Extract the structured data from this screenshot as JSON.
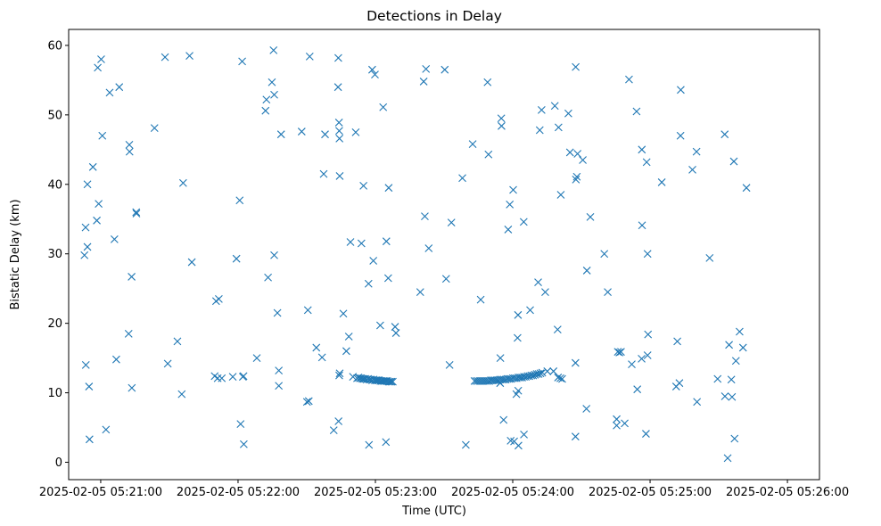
{
  "chart_data": {
    "type": "scatter",
    "title": "Detections in Delay",
    "xlabel": "Time (UTC)",
    "ylabel": "Bistatic Delay (km)",
    "marker": "x",
    "color": "#1f77b4",
    "grid": false,
    "x_units": "seconds after 2025-02-05 05:21:00",
    "xlim": [
      -14,
      314
    ],
    "ylim": [
      -2.5,
      62.3
    ],
    "x_ticks": [
      {
        "value": 0,
        "label": "2025-02-05 05:21:00"
      },
      {
        "value": 60,
        "label": "2025-02-05 05:22:00"
      },
      {
        "value": 120,
        "label": "2025-02-05 05:23:00"
      },
      {
        "value": 180,
        "label": "2025-02-05 05:24:00"
      },
      {
        "value": 240,
        "label": "2025-02-05 05:25:00"
      },
      {
        "value": 300,
        "label": "2025-02-05 05:26:00"
      }
    ],
    "y_ticks": [
      {
        "value": 0,
        "label": "0"
      },
      {
        "value": 10,
        "label": "10"
      },
      {
        "value": 20,
        "label": "20"
      },
      {
        "value": 30,
        "label": "30"
      },
      {
        "value": 40,
        "label": "40"
      },
      {
        "value": 50,
        "label": "50"
      },
      {
        "value": 60,
        "label": "60"
      }
    ],
    "series": [
      {
        "name": "Detections",
        "points": [
          [
            -7.1,
            29.8
          ],
          [
            -6.6,
            33.8
          ],
          [
            -6.5,
            14.0
          ],
          [
            -5.8,
            31.0
          ],
          [
            -5.8,
            40.0
          ],
          [
            -5.1,
            10.9
          ],
          [
            -4.9,
            3.3
          ],
          [
            -3.4,
            42.5
          ],
          [
            -1.7,
            34.8
          ],
          [
            -1.3,
            56.8
          ],
          [
            -0.9,
            37.2
          ],
          [
            0.2,
            58.0
          ],
          [
            0.7,
            47.0
          ],
          [
            2.3,
            4.7
          ],
          [
            3.9,
            53.2
          ],
          [
            6.0,
            32.1
          ],
          [
            6.8,
            14.8
          ],
          [
            8.1,
            54.0
          ],
          [
            12.2,
            18.5
          ],
          [
            12.5,
            45.7
          ],
          [
            12.6,
            44.7
          ],
          [
            13.5,
            26.7
          ],
          [
            13.6,
            10.7
          ],
          [
            15.5,
            36.0
          ],
          [
            15.6,
            35.8
          ],
          [
            23.5,
            48.1
          ],
          [
            28.1,
            58.3
          ],
          [
            29.3,
            14.2
          ],
          [
            33.5,
            17.4
          ],
          [
            35.4,
            9.8
          ],
          [
            36.0,
            40.2
          ],
          [
            38.8,
            58.5
          ],
          [
            39.8,
            28.8
          ],
          [
            49.8,
            12.4
          ],
          [
            50.4,
            23.2
          ],
          [
            51.1,
            12.1
          ],
          [
            51.6,
            23.5
          ],
          [
            52.9,
            12.1
          ],
          [
            57.7,
            12.3
          ],
          [
            59.3,
            29.3
          ],
          [
            60.7,
            37.7
          ],
          [
            61.1,
            5.5
          ],
          [
            61.8,
            57.7
          ],
          [
            62.1,
            12.3
          ],
          [
            62.4,
            12.4
          ],
          [
            62.5,
            2.6
          ],
          [
            68.2,
            15.0
          ],
          [
            72.0,
            50.6
          ],
          [
            72.4,
            52.2
          ],
          [
            73.1,
            26.6
          ],
          [
            74.8,
            54.7
          ],
          [
            75.5,
            59.3
          ],
          [
            75.8,
            52.9
          ],
          [
            75.8,
            29.8
          ],
          [
            77.2,
            21.5
          ],
          [
            77.8,
            13.2
          ],
          [
            77.8,
            11.0
          ],
          [
            78.8,
            47.2
          ],
          [
            87.8,
            47.6
          ],
          [
            90.1,
            8.7
          ],
          [
            90.5,
            21.9
          ],
          [
            90.9,
            8.8
          ],
          [
            91.3,
            58.4
          ],
          [
            94.2,
            16.5
          ],
          [
            96.7,
            15.1
          ],
          [
            97.4,
            41.5
          ],
          [
            98.0,
            47.2
          ],
          [
            101.8,
            4.6
          ],
          [
            103.7,
            54.0
          ],
          [
            103.8,
            58.2
          ],
          [
            104.1,
            48.9
          ],
          [
            104.2,
            47.7
          ],
          [
            104.3,
            46.6
          ],
          [
            104.4,
            41.2
          ],
          [
            103.9,
            5.9
          ],
          [
            104.4,
            12.8
          ],
          [
            104.2,
            12.5
          ],
          [
            106.0,
            21.4
          ],
          [
            107.3,
            16.0
          ],
          [
            108.4,
            18.1
          ],
          [
            109.1,
            31.7
          ],
          [
            110.2,
            12.3
          ],
          [
            111.4,
            47.5
          ],
          [
            112.0,
            12.1
          ],
          [
            112.6,
            12.2
          ],
          [
            113.2,
            12.1
          ],
          [
            113.9,
            31.5
          ],
          [
            113.8,
            12.1
          ],
          [
            114.4,
            12.0
          ],
          [
            114.8,
            39.8
          ],
          [
            115.0,
            12.0
          ],
          [
            115.6,
            12.0
          ],
          [
            116.2,
            11.9
          ],
          [
            117.0,
            25.7
          ],
          [
            116.8,
            12.0
          ],
          [
            117.2,
            2.5
          ],
          [
            117.4,
            11.9
          ],
          [
            118.0,
            11.9
          ],
          [
            118.6,
            56.5
          ],
          [
            118.6,
            11.8
          ],
          [
            119.1,
            29.0
          ],
          [
            119.2,
            11.9
          ],
          [
            119.8,
            55.8
          ],
          [
            119.8,
            11.8
          ],
          [
            120.4,
            11.8
          ],
          [
            121.0,
            11.8
          ],
          [
            121.6,
            11.8
          ],
          [
            122.1,
            19.7
          ],
          [
            122.2,
            11.7
          ],
          [
            122.8,
            11.7
          ],
          [
            123.4,
            51.1
          ],
          [
            123.4,
            11.7
          ],
          [
            124.0,
            11.7
          ],
          [
            124.6,
            11.7
          ],
          [
            125.2,
            11.7
          ],
          [
            125.8,
            11.6
          ],
          [
            124.8,
            31.8
          ],
          [
            124.6,
            2.9
          ],
          [
            125.6,
            26.5
          ],
          [
            125.8,
            39.5
          ],
          [
            126.4,
            11.6
          ],
          [
            127.0,
            11.6
          ],
          [
            127.6,
            11.6
          ],
          [
            128.6,
            19.5
          ],
          [
            129.0,
            18.6
          ],
          [
            139.6,
            24.5
          ],
          [
            141.1,
            54.8
          ],
          [
            141.6,
            35.4
          ],
          [
            142.1,
            56.6
          ],
          [
            143.3,
            30.8
          ],
          [
            150.3,
            56.5
          ],
          [
            150.9,
            26.4
          ],
          [
            152.4,
            14.0
          ],
          [
            153.2,
            34.5
          ],
          [
            158.0,
            40.9
          ],
          [
            159.5,
            2.5
          ],
          [
            162.5,
            45.8
          ],
          [
            163.3,
            11.7
          ],
          [
            164.1,
            11.7
          ],
          [
            164.9,
            11.7
          ],
          [
            165.7,
            11.7
          ],
          [
            166.0,
            23.4
          ],
          [
            166.5,
            11.7
          ],
          [
            167.3,
            11.7
          ],
          [
            168.1,
            11.7
          ],
          [
            168.9,
            11.7
          ],
          [
            169.0,
            54.7
          ],
          [
            169.4,
            44.3
          ],
          [
            169.7,
            11.7
          ],
          [
            170.5,
            11.8
          ],
          [
            171.3,
            11.8
          ],
          [
            172.1,
            11.8
          ],
          [
            172.9,
            11.8
          ],
          [
            173.7,
            11.8
          ],
          [
            174.5,
            11.9
          ],
          [
            174.5,
            11.4
          ],
          [
            174.6,
            15.0
          ],
          [
            175.0,
            49.5
          ],
          [
            175.3,
            11.9
          ],
          [
            175.1,
            48.4
          ],
          [
            176.0,
            6.1
          ],
          [
            176.1,
            11.9
          ],
          [
            176.9,
            11.9
          ],
          [
            177.7,
            12.0
          ],
          [
            178.0,
            33.5
          ],
          [
            178.5,
            12.0
          ],
          [
            178.7,
            37.1
          ],
          [
            179.3,
            12.0
          ],
          [
            179.1,
            3.1
          ],
          [
            180.1,
            12.1
          ],
          [
            180.2,
            39.2
          ],
          [
            180.9,
            12.1
          ],
          [
            180.6,
            3.0
          ],
          [
            181.6,
            9.8
          ],
          [
            181.7,
            12.1
          ],
          [
            182.1,
            17.9
          ],
          [
            182.4,
            10.3
          ],
          [
            182.5,
            12.2
          ],
          [
            182.3,
            21.2
          ],
          [
            182.5,
            2.4
          ],
          [
            183.3,
            12.2
          ],
          [
            184.1,
            12.2
          ],
          [
            184.8,
            34.6
          ],
          [
            184.9,
            12.3
          ],
          [
            184.9,
            4.0
          ],
          [
            185.7,
            12.3
          ],
          [
            186.5,
            12.4
          ],
          [
            187.3,
            12.4
          ],
          [
            187.6,
            21.9
          ],
          [
            188.1,
            12.5
          ],
          [
            188.9,
            12.5
          ],
          [
            189.7,
            12.6
          ],
          [
            190.5,
            12.7
          ],
          [
            191.3,
            12.7
          ],
          [
            191.1,
            25.9
          ],
          [
            191.8,
            47.8
          ],
          [
            192.1,
            12.8
          ],
          [
            192.6,
            50.7
          ],
          [
            192.9,
            12.9
          ],
          [
            194.2,
            24.5
          ],
          [
            195.1,
            13.1
          ],
          [
            197.8,
            13.1
          ],
          [
            198.4,
            51.3
          ],
          [
            199.6,
            19.1
          ],
          [
            199.8,
            12.2
          ],
          [
            200.0,
            48.2
          ],
          [
            200.8,
            12.1
          ],
          [
            201.0,
            38.5
          ],
          [
            201.6,
            12.0
          ],
          [
            204.3,
            50.2
          ],
          [
            205.0,
            44.6
          ],
          [
            207.6,
            40.7
          ],
          [
            207.5,
            56.9
          ],
          [
            208.0,
            41.1
          ],
          [
            208.3,
            44.4
          ],
          [
            207.4,
            14.3
          ],
          [
            207.4,
            3.7
          ],
          [
            210.6,
            43.5
          ],
          [
            212.4,
            27.6
          ],
          [
            212.2,
            7.7
          ],
          [
            213.9,
            35.3
          ],
          [
            220.0,
            30.0
          ],
          [
            221.5,
            24.5
          ],
          [
            225.4,
            6.2
          ],
          [
            225.4,
            5.3
          ],
          [
            225.9,
            15.9
          ],
          [
            226.6,
            15.8
          ],
          [
            227.3,
            15.9
          ],
          [
            228.9,
            5.6
          ],
          [
            230.8,
            55.1
          ],
          [
            232.0,
            14.1
          ],
          [
            234.1,
            50.5
          ],
          [
            234.4,
            10.5
          ],
          [
            236.3,
            14.9
          ],
          [
            236.4,
            45.0
          ],
          [
            236.5,
            34.1
          ],
          [
            238.2,
            4.1
          ],
          [
            238.5,
            43.2
          ],
          [
            238.9,
            15.4
          ],
          [
            238.9,
            30.0
          ],
          [
            239.1,
            18.4
          ],
          [
            245.1,
            40.3
          ],
          [
            251.4,
            10.9
          ],
          [
            251.9,
            17.4
          ],
          [
            252.8,
            11.4
          ],
          [
            253.3,
            47.0
          ],
          [
            253.4,
            53.6
          ],
          [
            258.5,
            42.1
          ],
          [
            260.3,
            44.7
          ],
          [
            260.5,
            8.7
          ],
          [
            266.0,
            29.4
          ],
          [
            269.5,
            12.0
          ],
          [
            272.6,
            47.2
          ],
          [
            272.7,
            9.5
          ],
          [
            273.9,
            0.6
          ],
          [
            274.5,
            16.9
          ],
          [
            275.5,
            11.9
          ],
          [
            275.8,
            9.4
          ],
          [
            276.6,
            43.3
          ],
          [
            276.9,
            3.4
          ],
          [
            277.5,
            14.6
          ],
          [
            279.1,
            18.8
          ],
          [
            280.6,
            16.5
          ],
          [
            282.1,
            39.5
          ]
        ]
      }
    ]
  }
}
